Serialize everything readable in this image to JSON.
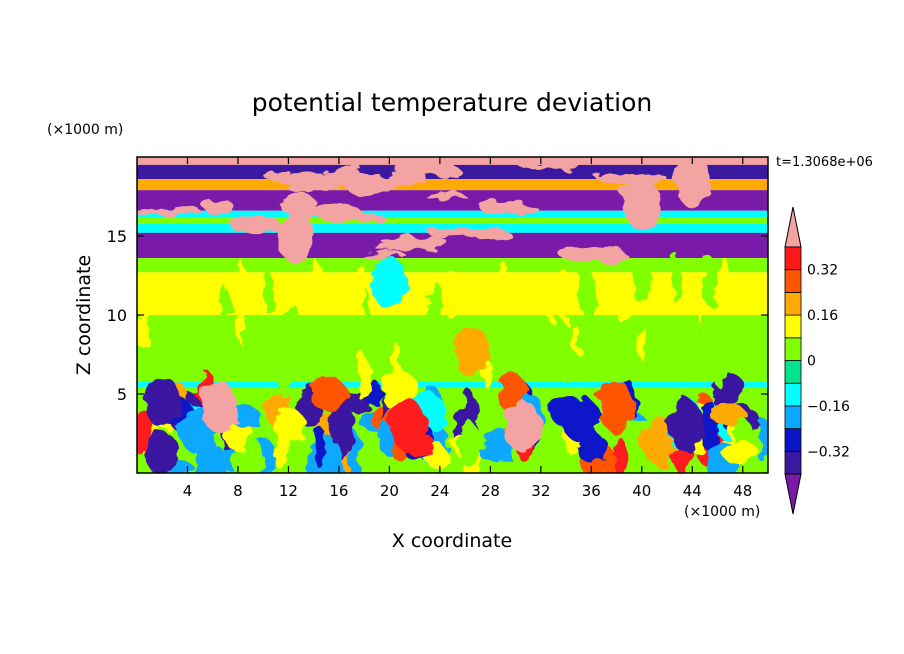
{
  "chart_data": {
    "type": "heatmap",
    "title": "potential temperature deviation",
    "xlabel": "X coordinate",
    "ylabel": "Z coordinate",
    "x_unit_label": "(×1000 m)",
    "y_unit_label": "(×1000 m)",
    "time_label": "t=1.3068e+06",
    "xlim": [
      0,
      50
    ],
    "ylim": [
      0,
      20
    ],
    "x_ticks": [
      4,
      8,
      12,
      16,
      20,
      24,
      28,
      32,
      36,
      40,
      44,
      48
    ],
    "y_ticks": [
      5,
      10,
      15
    ],
    "grid": false,
    "colorbar": {
      "position": "right",
      "levels": [
        -0.4,
        -0.32,
        -0.24,
        -0.16,
        -0.08,
        0,
        0.08,
        0.16,
        0.24,
        0.32,
        0.4
      ],
      "tick_labels": [
        "0.32",
        "0.16",
        "0",
        "−0.16",
        "−0.32"
      ],
      "tick_values": [
        0.32,
        0.16,
        0,
        -0.16,
        -0.32
      ],
      "under_color": "#7a1aa8",
      "over_color": "#f4a3a3",
      "colors": [
        "#3b18a0",
        "#0a14c8",
        "#0aa8ff",
        "#00ffff",
        "#00e38c",
        "#80ff00",
        "#ffff00",
        "#ffaa00",
        "#ff5500",
        "#ff1a1a"
      ]
    },
    "bands": [
      {
        "z_range": [
          19.5,
          20.0
        ],
        "value": 0.45
      },
      {
        "z_range": [
          18.6,
          19.5
        ],
        "value": -0.36
      },
      {
        "z_range": [
          17.9,
          18.6
        ],
        "value": 0.2
      },
      {
        "z_range": [
          16.6,
          17.9
        ],
        "value": -0.45
      },
      {
        "z_range": [
          16.2,
          16.6
        ],
        "value": -0.12
      },
      {
        "z_range": [
          15.8,
          16.2
        ],
        "value": 0.04
      },
      {
        "z_range": [
          15.2,
          15.8
        ],
        "value": -0.12
      },
      {
        "z_range": [
          13.6,
          15.2
        ],
        "value": -0.45
      },
      {
        "z_range": [
          12.7,
          13.6
        ],
        "value": 0.04
      },
      {
        "z_range": [
          10.0,
          12.7
        ],
        "value": 0.1
      },
      {
        "z_range": [
          5.8,
          10.0
        ],
        "value": 0.03
      },
      {
        "z_range": [
          5.4,
          5.8
        ],
        "value": -0.14
      },
      {
        "z_range": [
          0.0,
          5.4
        ],
        "value": 0.0
      }
    ],
    "features": [
      {
        "x": 26.5,
        "z": 7.7,
        "value": 0.2
      },
      {
        "x": 20.0,
        "z": 12.0,
        "value": -0.14
      },
      {
        "x": 6.5,
        "z": 4.2,
        "value": 0.45
      },
      {
        "x": 30.5,
        "z": 3.0,
        "value": 0.45
      },
      {
        "x": 12.5,
        "z": 15.0,
        "value": 0.45
      },
      {
        "x": 40.0,
        "z": 17.0,
        "value": 0.45
      },
      {
        "x": 44.0,
        "z": 18.5,
        "value": 0.45
      },
      {
        "x": 21.5,
        "z": 3.0,
        "value": 0.34
      },
      {
        "x": 38.0,
        "z": 4.2,
        "value": 0.3
      },
      {
        "x": 2.0,
        "z": 4.5,
        "value": -0.36
      },
      {
        "x": 43.5,
        "z": 3.0,
        "value": -0.36
      }
    ]
  }
}
